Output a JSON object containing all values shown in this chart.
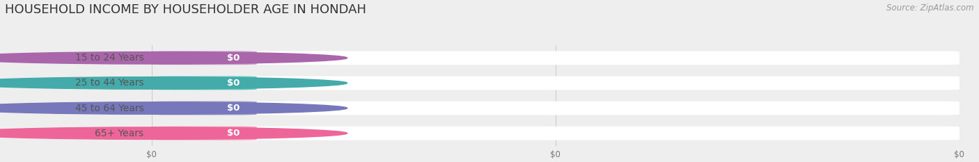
{
  "title": "HOUSEHOLD INCOME BY HOUSEHOLDER AGE IN HONDAH",
  "source_text": "Source: ZipAtlas.com",
  "categories": [
    "15 to 24 Years",
    "25 to 44 Years",
    "45 to 64 Years",
    "65+ Years"
  ],
  "values": [
    0,
    0,
    0,
    0
  ],
  "bar_colors": [
    "#cc99cc",
    "#66ccbe",
    "#9999cc",
    "#f599b8"
  ],
  "dot_colors": [
    "#aa66aa",
    "#44aaaa",
    "#7777bb",
    "#ee6699"
  ],
  "background_color": "#eeeeee",
  "bar_bg_color": "#fafafa",
  "title_fontsize": 13,
  "source_fontsize": 8.5,
  "label_fontsize": 10,
  "value_fontsize": 9.5,
  "x_tick_labels": [
    "$0",
    "$0",
    "$0"
  ],
  "x_tick_positions": [
    0,
    0.5,
    1.0
  ]
}
